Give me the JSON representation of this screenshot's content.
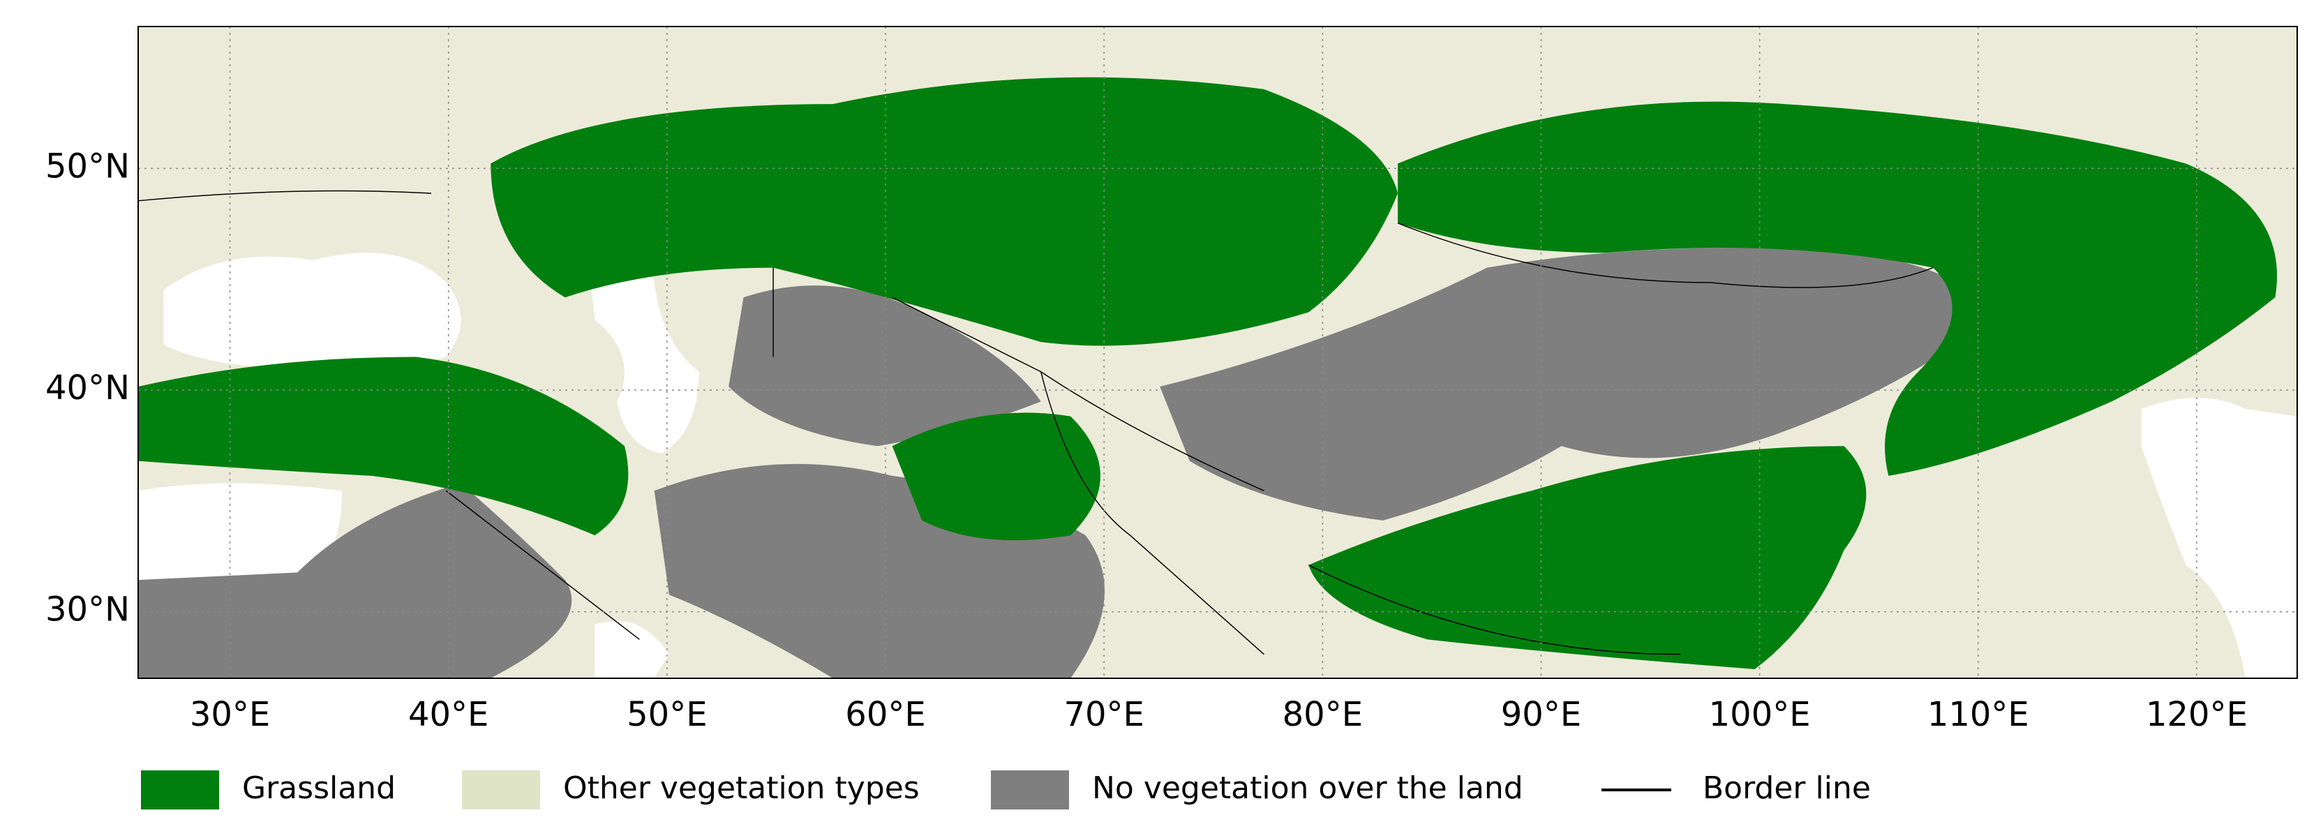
{
  "map": {
    "xlim": [
      25.8,
      124.6
    ],
    "ylim": [
      27,
      56.4
    ],
    "xticks": [
      {
        "value": 30,
        "label": "30°E"
      },
      {
        "value": 40,
        "label": "40°E"
      },
      {
        "value": 50,
        "label": "50°E"
      },
      {
        "value": 60,
        "label": "60°E"
      },
      {
        "value": 70,
        "label": "70°E"
      },
      {
        "value": 80,
        "label": "80°E"
      },
      {
        "value": 90,
        "label": "90°E"
      },
      {
        "value": 100,
        "label": "100°E"
      },
      {
        "value": 110,
        "label": "110°E"
      },
      {
        "value": 120,
        "label": "120°E"
      }
    ],
    "yticks": [
      {
        "value": 30,
        "label": "30°N"
      },
      {
        "value": 40,
        "label": "40°N"
      },
      {
        "value": 50,
        "label": "50°N"
      }
    ],
    "grid": true,
    "legend": [
      {
        "label": "Grassland",
        "color": "#007f0e"
      },
      {
        "label": "Other vegetation types",
        "color": "#dfe4c6"
      },
      {
        "label": "No vegetation over the land",
        "color": "#7f7f7f"
      },
      {
        "label": "Border line",
        "color": "#000000"
      }
    ]
  }
}
